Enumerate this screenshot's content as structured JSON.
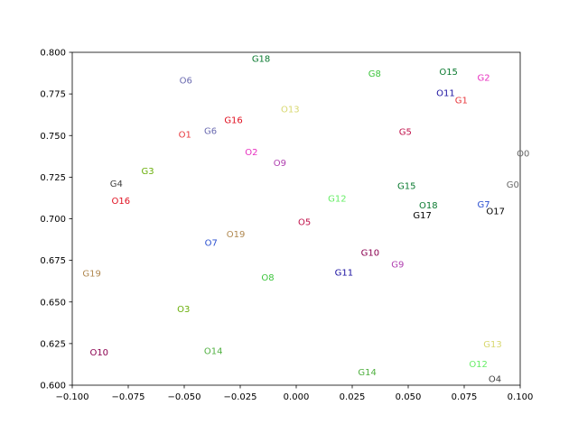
{
  "chart_data": {
    "type": "scatter",
    "title": "",
    "xlabel": "",
    "ylabel": "",
    "xlim": [
      -0.1,
      0.1
    ],
    "ylim": [
      0.6,
      0.8
    ],
    "grid": false,
    "x_ticks": [
      "−0.100",
      "−0.075",
      "−0.050",
      "−0.025",
      "0.000",
      "0.025",
      "0.050",
      "0.075",
      "0.100"
    ],
    "x_tick_values": [
      -0.1,
      -0.075,
      -0.05,
      -0.025,
      0.0,
      0.025,
      0.05,
      0.075,
      0.1
    ],
    "y_ticks": [
      "0.600",
      "0.625",
      "0.650",
      "0.675",
      "0.700",
      "0.725",
      "0.750",
      "0.775",
      "0.800"
    ],
    "y_tick_values": [
      0.6,
      0.625,
      0.65,
      0.675,
      0.7,
      0.725,
      0.75,
      0.775,
      0.8
    ],
    "points": [
      {
        "label": "O0",
        "x": 0.1013,
        "y": 0.7395,
        "color": "#696969"
      },
      {
        "label": "G0",
        "x": 0.0967,
        "y": 0.721,
        "color": "#696969"
      },
      {
        "label": "O1",
        "x": -0.0497,
        "y": 0.751,
        "color": "#e8383d"
      },
      {
        "label": "G1",
        "x": 0.0737,
        "y": 0.7715,
        "color": "#e8383d"
      },
      {
        "label": "O2",
        "x": -0.02,
        "y": 0.7405,
        "color": "#e830c0"
      },
      {
        "label": "G2",
        "x": 0.0837,
        "y": 0.785,
        "color": "#e830c0"
      },
      {
        "label": "O3",
        "x": -0.0503,
        "y": 0.646,
        "color": "#6aaf0a"
      },
      {
        "label": "G3",
        "x": -0.0663,
        "y": 0.729,
        "color": "#6aaf0a"
      },
      {
        "label": "O4",
        "x": 0.0887,
        "y": 0.604,
        "color": "#404040"
      },
      {
        "label": "G4",
        "x": -0.0803,
        "y": 0.7215,
        "color": "#404040"
      },
      {
        "label": "O5",
        "x": 0.0037,
        "y": 0.6985,
        "color": "#c0104a"
      },
      {
        "label": "G5",
        "x": 0.0487,
        "y": 0.7525,
        "color": "#c0104a"
      },
      {
        "label": "O6",
        "x": -0.0493,
        "y": 0.7835,
        "color": "#6a6ab0"
      },
      {
        "label": "G6",
        "x": -0.0383,
        "y": 0.753,
        "color": "#6a6ab0"
      },
      {
        "label": "O7",
        "x": -0.038,
        "y": 0.686,
        "color": "#2a4fd0"
      },
      {
        "label": "G7",
        "x": 0.0837,
        "y": 0.709,
        "color": "#2a4fd0"
      },
      {
        "label": "O8",
        "x": -0.0127,
        "y": 0.665,
        "color": "#3cc43c"
      },
      {
        "label": "G8",
        "x": 0.035,
        "y": 0.7875,
        "color": "#3cc43c"
      },
      {
        "label": "O9",
        "x": -0.0073,
        "y": 0.734,
        "color": "#b040b0"
      },
      {
        "label": "G9",
        "x": 0.0453,
        "y": 0.673,
        "color": "#b040b0"
      },
      {
        "label": "O10",
        "x": -0.088,
        "y": 0.62,
        "color": "#8b0050"
      },
      {
        "label": "G10",
        "x": 0.033,
        "y": 0.68,
        "color": "#8b0050"
      },
      {
        "label": "O11",
        "x": 0.0667,
        "y": 0.776,
        "color": "#1a10a0"
      },
      {
        "label": "G11",
        "x": 0.0213,
        "y": 0.668,
        "color": "#1a10a0"
      },
      {
        "label": "O12",
        "x": 0.0813,
        "y": 0.613,
        "color": "#66ee66"
      },
      {
        "label": "G12",
        "x": 0.0183,
        "y": 0.7125,
        "color": "#66ee66"
      },
      {
        "label": "O13",
        "x": -0.0027,
        "y": 0.766,
        "color": "#d8d870"
      },
      {
        "label": "G13",
        "x": 0.0877,
        "y": 0.625,
        "color": "#d8d870"
      },
      {
        "label": "O14",
        "x": -0.037,
        "y": 0.621,
        "color": "#50b040"
      },
      {
        "label": "G14",
        "x": 0.0317,
        "y": 0.608,
        "color": "#50b040"
      },
      {
        "label": "O15",
        "x": 0.068,
        "y": 0.7885,
        "color": "#0a7a30"
      },
      {
        "label": "G15",
        "x": 0.0493,
        "y": 0.72,
        "color": "#0a7a30"
      },
      {
        "label": "O16",
        "x": -0.0783,
        "y": 0.711,
        "color": "#e01020"
      },
      {
        "label": "G16",
        "x": -0.028,
        "y": 0.7595,
        "color": "#e01020"
      },
      {
        "label": "O17",
        "x": 0.089,
        "y": 0.705,
        "color": "#000000"
      },
      {
        "label": "G17",
        "x": 0.0563,
        "y": 0.7025,
        "color": "#000000"
      },
      {
        "label": "O18",
        "x": -0.027,
        "y": 0.691,
        "color": "#b08850"
      },
      {
        "label": "G18",
        "x": -0.0157,
        "y": 0.7965,
        "color": "#0a7a30"
      },
      {
        "label": "O18b",
        "x": 0.059,
        "y": 0.7085,
        "color": "#0a7a30"
      },
      {
        "label": "G19",
        "x": -0.0913,
        "y": 0.6675,
        "color": "#b08850"
      }
    ],
    "display_labels": {
      "O18": "O19",
      "O18b": "O18"
    }
  }
}
